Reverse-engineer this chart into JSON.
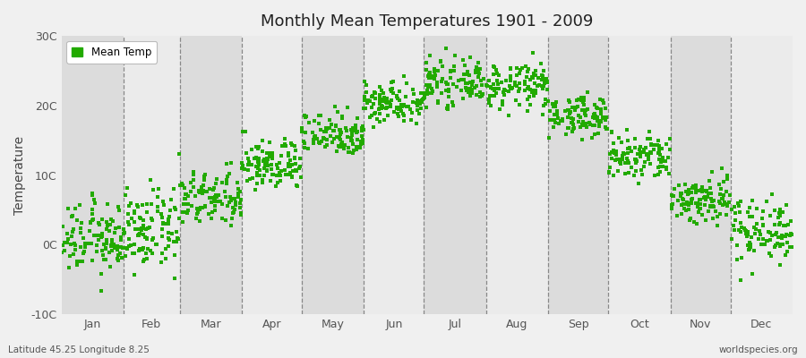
{
  "title": "Monthly Mean Temperatures 1901 - 2009",
  "ylabel": "Temperature",
  "bg_color": "#f0f0f0",
  "plot_bg_color": "#e8e8e8",
  "band_color_light": "#ebebeb",
  "band_color_dark": "#dcdcdc",
  "dot_color": "#22aa00",
  "dot_size": 5,
  "ylim": [
    -10,
    30
  ],
  "yticks": [
    -10,
    0,
    10,
    20,
    30
  ],
  "ytick_labels": [
    "-10C",
    "0C",
    "10C",
    "20C",
    "30C"
  ],
  "months": [
    "Jan",
    "Feb",
    "Mar",
    "Apr",
    "May",
    "Jun",
    "Jul",
    "Aug",
    "Sep",
    "Oct",
    "Nov",
    "Dec"
  ],
  "month_days": [
    31,
    28,
    31,
    30,
    31,
    30,
    31,
    31,
    30,
    31,
    30,
    31
  ],
  "subtitle_left": "Latitude 45.25 Longitude 8.25",
  "subtitle_right": "worldspecies.org",
  "legend_label": "Mean Temp",
  "n_years": 109,
  "monthly_means": [
    0.8,
    2.0,
    6.5,
    11.5,
    16.0,
    20.5,
    23.2,
    22.8,
    18.5,
    12.5,
    6.5,
    2.2
  ],
  "monthly_stds": [
    2.5,
    2.8,
    2.0,
    1.8,
    1.6,
    1.5,
    1.5,
    1.6,
    1.4,
    1.8,
    1.8,
    2.3
  ]
}
